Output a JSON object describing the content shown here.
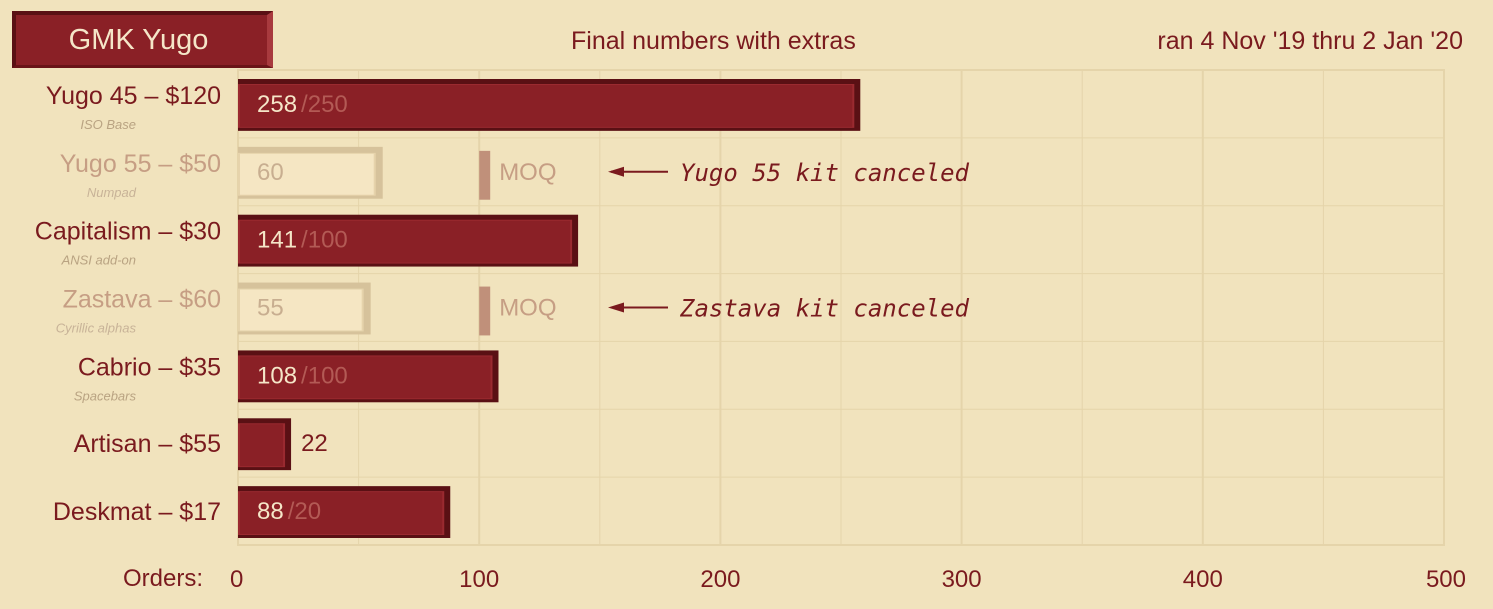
{
  "header": {
    "title": "GMK Yugo",
    "subtitle": "Final numbers with extras",
    "date_range": "ran 4 Nov '19 thru 2 Jan '20"
  },
  "colors": {
    "background": "#f1e3bd",
    "bar_active": "#8a2026",
    "bar_canceled": "#f5e6c3",
    "text_active": "#7a1a1e",
    "text_canceled": "#c69e84",
    "moq_marker": "#c0907a",
    "grid": "#e5d4aa"
  },
  "chart_data": {
    "type": "bar",
    "orientation": "horizontal",
    "title": "Final numbers with extras",
    "xlabel": "Orders:",
    "xlim": [
      0,
      500
    ],
    "xticks": [
      0,
      100,
      200,
      300,
      400,
      500
    ],
    "grid": true,
    "series": [
      {
        "label": "Yugo 45 – $120",
        "sublabel": "ISO Base",
        "value": 258,
        "moq": 250,
        "canceled": false
      },
      {
        "label": "Yugo 55 – $50",
        "sublabel": "Numpad",
        "value": 60,
        "moq": 100,
        "canceled": true,
        "annotation": "Yugo 55 kit canceled"
      },
      {
        "label": "Capitalism – $30",
        "sublabel": "ANSI add-on",
        "value": 141,
        "moq": 100,
        "canceled": false
      },
      {
        "label": "Zastava – $60",
        "sublabel": "Cyrillic alphas",
        "value": 55,
        "moq": 100,
        "canceled": true,
        "annotation": "Zastava kit canceled"
      },
      {
        "label": "Cabrio – $35",
        "sublabel": "Spacebars",
        "value": 108,
        "moq": 100,
        "canceled": false
      },
      {
        "label": "Artisan – $55",
        "sublabel": "",
        "value": 22,
        "moq": null,
        "canceled": false
      },
      {
        "label": "Deskmat – $17",
        "sublabel": "",
        "value": 88,
        "moq": 20,
        "canceled": false
      }
    ],
    "moq_label": "MOQ"
  }
}
